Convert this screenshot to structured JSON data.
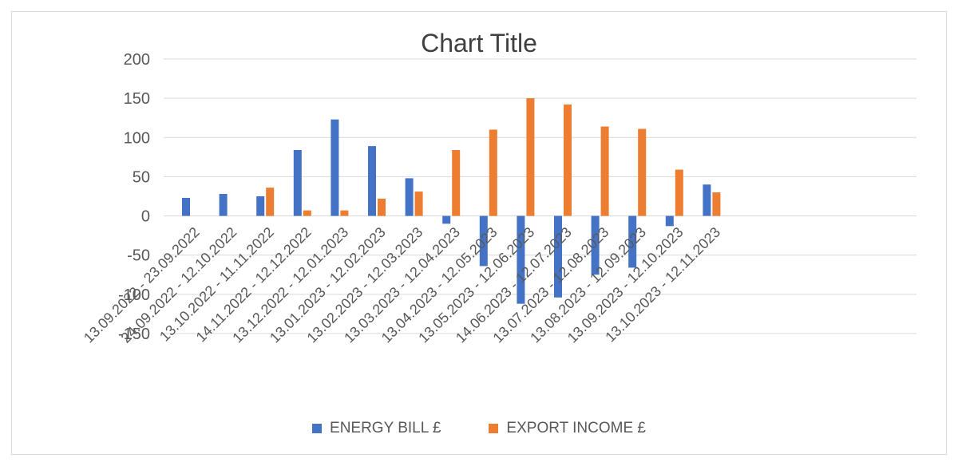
{
  "colors": {
    "energy": "#4472c4",
    "export": "#ed7d31",
    "grid": "#d9d9d9",
    "text": "#595959"
  },
  "chart_data": {
    "type": "bar",
    "title": "Chart Title",
    "xlabel": "",
    "ylabel": "",
    "ylim": [
      -150,
      200
    ],
    "yticks": [
      200,
      150,
      100,
      50,
      0,
      -50,
      -100,
      -150
    ],
    "grid": true,
    "legend_position": "bottom",
    "categories": [
      "13.09.2022 - 23.09.2022",
      "24.09.2022 - 12.10.2022",
      "13.10.2022 - 11.11.2022",
      "14.11.2022 - 12.12.2022",
      "13.12.2022 - 12.01.2023",
      "13.01.2023 - 12.02.2023",
      "13.02.2023 - 12.03.2023",
      "13.03.2023 - 12.04.2023",
      "13.04.2023 - 12.05.2023",
      "13.05.2023 - 12.06.2023",
      "14.06.2023 - 12.07.2023",
      "13.07.2023 - 12.08.2023",
      "13.08.2023 - 12.09.2023",
      "13.09.2023 - 12.10.2023",
      "13.10.2023 - 12.11.2023"
    ],
    "series": [
      {
        "name": "ENERGY BILL £",
        "values": [
          23,
          28,
          25,
          84,
          123,
          89,
          48,
          -10,
          -64,
          -112,
          -104,
          -75,
          -66,
          -13,
          40
        ]
      },
      {
        "name": "EXPORT INCOME £",
        "values": [
          0,
          0,
          36,
          7,
          7,
          22,
          31,
          84,
          110,
          150,
          142,
          114,
          111,
          59,
          30
        ]
      }
    ]
  }
}
